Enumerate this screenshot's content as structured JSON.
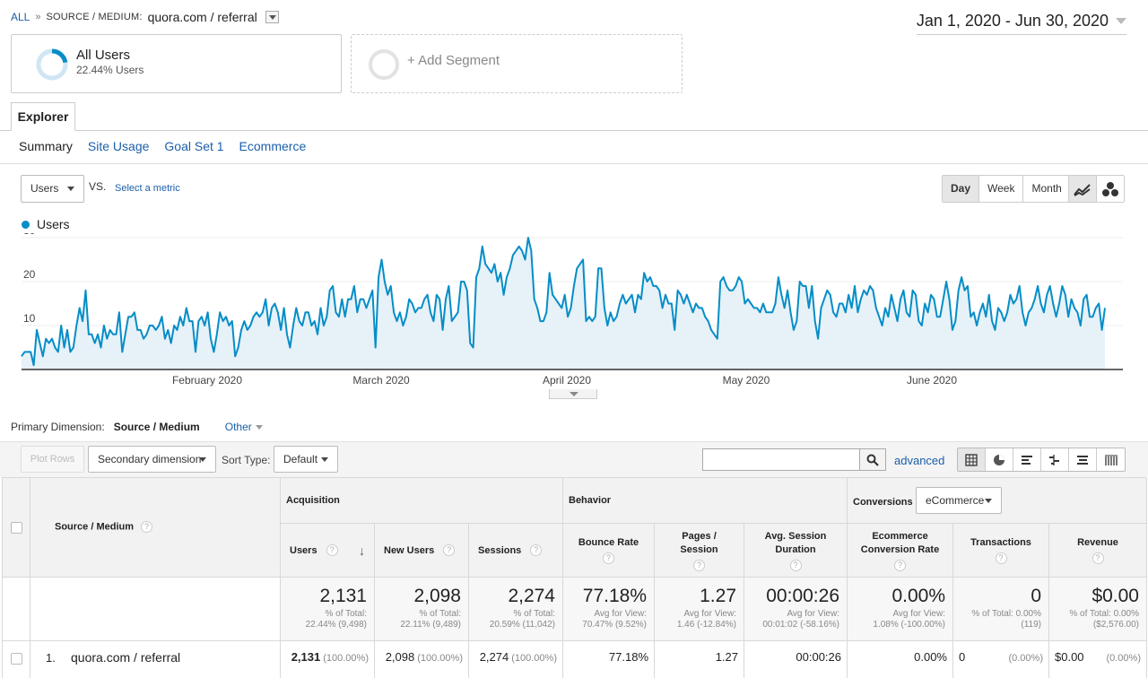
{
  "breadcrumb": {
    "all": "ALL",
    "separator": "»",
    "dimension_label": "SOURCE / MEDIUM:",
    "dimension_value": "quora.com / referral"
  },
  "date_range": "Jan 1, 2020 - Jun 30, 2020",
  "segments": {
    "all_users_title": "All Users",
    "all_users_sub": "22.44% Users",
    "all_users_fraction": 0.2244,
    "add_segment": "+ Add Segment"
  },
  "tabs": {
    "explorer": "Explorer",
    "subtabs": [
      "Summary",
      "Site Usage",
      "Goal Set 1",
      "Ecommerce"
    ]
  },
  "controls": {
    "metric": "Users",
    "vs": "VS.",
    "select_metric": "Select a metric",
    "periods": [
      "Day",
      "Week",
      "Month"
    ],
    "active_period": "Day"
  },
  "colors": {
    "series": "#058dc7",
    "fill": "#e7f1f8"
  },
  "chart_data": {
    "type": "area",
    "series": [
      {
        "name": "Users",
        "values": [
          3,
          4,
          4,
          4,
          1,
          9,
          6,
          3,
          7,
          6,
          7,
          5,
          4,
          10,
          5,
          9,
          4,
          5,
          10,
          14,
          11,
          18,
          8,
          8,
          6,
          8,
          5,
          10,
          7,
          9,
          8,
          8,
          13,
          4,
          8,
          12,
          12,
          13,
          9,
          9,
          7,
          8,
          10,
          10,
          9,
          10,
          12,
          7,
          9,
          6,
          10,
          9,
          12,
          10,
          14,
          11,
          11,
          4,
          11,
          12,
          10,
          13,
          7,
          4,
          8,
          13,
          11,
          12,
          10,
          11,
          3,
          5,
          9,
          11,
          9,
          10,
          12,
          13,
          12,
          13,
          16,
          10,
          14,
          15,
          13,
          9,
          14,
          8,
          5,
          10,
          14,
          11,
          10,
          13,
          13,
          10,
          11,
          8,
          14,
          10,
          12,
          18,
          19,
          13,
          12,
          16,
          12,
          16,
          16,
          19,
          13,
          16,
          16,
          14,
          16,
          18,
          5,
          21,
          25,
          20,
          17,
          19,
          13,
          11,
          13,
          10,
          12,
          16,
          15,
          13,
          14,
          14,
          16,
          17,
          13,
          11,
          17,
          16,
          9,
          16,
          19,
          11,
          12,
          13,
          20,
          20,
          18,
          6,
          5,
          21,
          23,
          28,
          24,
          23,
          22,
          24,
          20,
          22,
          17,
          21,
          23,
          26,
          27,
          28,
          27,
          25,
          30,
          27,
          16,
          14,
          11,
          11,
          13,
          22,
          17,
          16,
          15,
          14,
          17,
          12,
          14,
          19,
          23,
          24,
          25,
          11,
          12,
          11,
          12,
          23,
          23,
          14,
          10,
          13,
          11,
          12,
          15,
          17,
          15,
          16,
          17,
          13,
          17,
          16,
          22,
          20,
          21,
          19,
          19,
          18,
          14,
          17,
          15,
          15,
          9,
          18,
          17,
          15,
          17,
          15,
          13,
          15,
          14,
          14,
          12,
          11,
          9,
          8,
          7,
          20,
          21,
          19,
          18,
          18,
          19,
          21,
          20,
          15,
          16,
          15,
          14,
          14,
          13,
          15,
          13,
          13,
          13,
          15,
          21,
          17,
          14,
          18,
          13,
          9,
          11,
          20,
          19,
          19,
          14,
          19,
          11,
          7,
          14,
          16,
          18,
          17,
          13,
          12,
          15,
          15,
          13,
          17,
          14,
          19,
          13,
          16,
          18,
          17,
          19,
          18,
          14,
          12,
          10,
          14,
          12,
          17,
          14,
          11,
          16,
          18,
          13,
          12,
          18,
          17,
          11,
          10,
          15,
          13,
          17,
          16,
          12,
          12,
          16,
          20,
          16,
          9,
          11,
          18,
          21,
          18,
          19,
          12,
          13,
          10,
          13,
          15,
          12,
          17,
          11,
          9,
          14,
          13,
          11,
          13,
          17,
          15,
          16,
          19,
          13,
          10,
          13,
          14,
          16,
          19,
          15,
          13,
          17,
          19,
          15,
          12,
          15,
          19,
          17,
          12,
          16,
          14,
          13,
          10,
          16,
          17,
          12,
          12,
          14,
          15,
          9,
          14
        ]
      }
    ],
    "x_labels": [
      "February 2020",
      "March 2020",
      "April 2020",
      "May 2020",
      "June 2020"
    ],
    "y_ticks": [
      10,
      20,
      30
    ],
    "ylim": [
      0,
      30
    ],
    "legend": "top-left",
    "grid": true
  },
  "primary_dimension": {
    "label": "Primary Dimension:",
    "value": "Source / Medium",
    "other": "Other"
  },
  "toolbar": {
    "plot_rows": "Plot Rows",
    "secondary_dimension": "Secondary dimension",
    "sort_type_label": "Sort Type:",
    "sort_type_value": "Default",
    "advanced": "advanced"
  },
  "table": {
    "dimension_header": "Source / Medium",
    "groups": {
      "acquisition": "Acquisition",
      "behavior": "Behavior",
      "conversions": "Conversions",
      "conversions_select": "eCommerce"
    },
    "columns": [
      "Users",
      "New Users",
      "Sessions",
      "Bounce Rate",
      "Pages / Session",
      "Avg. Session Duration",
      "Ecommerce Conversion Rate",
      "Transactions",
      "Revenue"
    ],
    "totals": [
      {
        "value": "2,131",
        "l1": "% of Total:",
        "l2": "22.44% (9,498)"
      },
      {
        "value": "2,098",
        "l1": "% of Total:",
        "l2": "22.11% (9,489)"
      },
      {
        "value": "2,274",
        "l1": "% of Total:",
        "l2": "20.59% (11,042)"
      },
      {
        "value": "77.18%",
        "l1": "Avg for View:",
        "l2": "70.47% (9.52%)"
      },
      {
        "value": "1.27",
        "l1": "Avg for View:",
        "l2": "1.46 (-12.84%)"
      },
      {
        "value": "00:00:26",
        "l1": "Avg for View:",
        "l2": "00:01:02 (-58.16%)"
      },
      {
        "value": "0.00%",
        "l1": "Avg for View:",
        "l2": "1.08% (-100.00%)"
      },
      {
        "value": "0",
        "l1": "% of Total: 0.00%",
        "l2": "(119)"
      },
      {
        "value": "$0.00",
        "l1": "% of Total: 0.00%",
        "l2": "($2,576.00)"
      }
    ],
    "row": {
      "index": "1.",
      "name": "quora.com / referral",
      "cells": [
        {
          "v": "2,131",
          "p": "(100.00%)"
        },
        {
          "v": "2,098",
          "p": "(100.00%)"
        },
        {
          "v": "2,274",
          "p": "(100.00%)"
        },
        {
          "v": "77.18%",
          "p": ""
        },
        {
          "v": "1.27",
          "p": ""
        },
        {
          "v": "00:00:26",
          "p": ""
        },
        {
          "v": "0.00%",
          "p": ""
        },
        {
          "v": "0",
          "p": "(0.00%)"
        },
        {
          "v": "$0.00",
          "p": "(0.00%)"
        }
      ]
    }
  }
}
